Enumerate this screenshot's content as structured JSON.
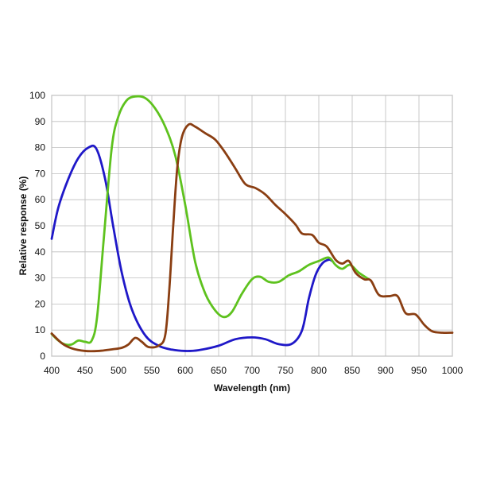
{
  "chart_data": {
    "type": "line",
    "title": "",
    "xlabel": "Wavelength (nm)",
    "ylabel": "Relative response (%)",
    "xlim": [
      400,
      1000
    ],
    "ylim": [
      0,
      100
    ],
    "x_ticks": [
      400,
      450,
      500,
      550,
      600,
      650,
      700,
      750,
      800,
      850,
      900,
      950,
      1000
    ],
    "y_ticks": [
      0,
      10,
      20,
      30,
      40,
      50,
      60,
      70,
      80,
      90,
      100
    ],
    "grid": true,
    "legend": "none",
    "series": [
      {
        "color": "#1f18c8",
        "points": [
          [
            400,
            45
          ],
          [
            410,
            57
          ],
          [
            425,
            68
          ],
          [
            440,
            76
          ],
          [
            455,
            80
          ],
          [
            467,
            79.5
          ],
          [
            480,
            68
          ],
          [
            492,
            50
          ],
          [
            505,
            32
          ],
          [
            520,
            18
          ],
          [
            540,
            8
          ],
          [
            560,
            4
          ],
          [
            580,
            2.5
          ],
          [
            600,
            2
          ],
          [
            620,
            2.3
          ],
          [
            650,
            4
          ],
          [
            675,
            6.5
          ],
          [
            700,
            7.2
          ],
          [
            720,
            6.5
          ],
          [
            740,
            4.6
          ],
          [
            760,
            4.8
          ],
          [
            775,
            10
          ],
          [
            785,
            22
          ],
          [
            795,
            31
          ],
          [
            805,
            35.5
          ],
          [
            815,
            37
          ],
          [
            820,
            36.5
          ]
        ]
      },
      {
        "color": "#5ec21e",
        "points": [
          [
            400,
            8.5
          ],
          [
            410,
            6
          ],
          [
            420,
            4.5
          ],
          [
            430,
            4.5
          ],
          [
            440,
            6
          ],
          [
            450,
            5.5
          ],
          [
            460,
            6
          ],
          [
            468,
            15
          ],
          [
            478,
            45
          ],
          [
            490,
            80
          ],
          [
            500,
            92
          ],
          [
            512,
            98
          ],
          [
            525,
            99.6
          ],
          [
            540,
            99
          ],
          [
            555,
            95
          ],
          [
            570,
            88
          ],
          [
            585,
            77
          ],
          [
            600,
            58
          ],
          [
            615,
            36
          ],
          [
            630,
            24
          ],
          [
            645,
            17.5
          ],
          [
            658,
            15
          ],
          [
            670,
            17
          ],
          [
            685,
            24
          ],
          [
            700,
            29.5
          ],
          [
            712,
            30.5
          ],
          [
            725,
            28.5
          ],
          [
            740,
            28.5
          ],
          [
            755,
            31
          ],
          [
            770,
            32.5
          ],
          [
            785,
            35
          ],
          [
            800,
            36.5
          ],
          [
            815,
            37.8
          ],
          [
            825,
            35
          ],
          [
            835,
            33.5
          ],
          [
            847,
            35
          ],
          [
            860,
            32
          ],
          [
            875,
            29.5
          ]
        ]
      },
      {
        "color": "#8a3e12",
        "points": [
          [
            400,
            8.7
          ],
          [
            415,
            5
          ],
          [
            430,
            3
          ],
          [
            450,
            2
          ],
          [
            470,
            2
          ],
          [
            490,
            2.6
          ],
          [
            505,
            3.2
          ],
          [
            515,
            4.5
          ],
          [
            525,
            7
          ],
          [
            535,
            5.5
          ],
          [
            545,
            3.5
          ],
          [
            560,
            4
          ],
          [
            570,
            8
          ],
          [
            576,
            25
          ],
          [
            582,
            50
          ],
          [
            588,
            72
          ],
          [
            595,
            84
          ],
          [
            605,
            88.8
          ],
          [
            615,
            88
          ],
          [
            630,
            85.5
          ],
          [
            645,
            83
          ],
          [
            660,
            78
          ],
          [
            675,
            72
          ],
          [
            690,
            66
          ],
          [
            705,
            64.5
          ],
          [
            720,
            62
          ],
          [
            735,
            58
          ],
          [
            750,
            54.5
          ],
          [
            765,
            50.5
          ],
          [
            775,
            47
          ],
          [
            790,
            46.5
          ],
          [
            800,
            43.5
          ],
          [
            812,
            42
          ],
          [
            825,
            37
          ],
          [
            835,
            35.5
          ],
          [
            845,
            36.5
          ],
          [
            855,
            32
          ],
          [
            868,
            29.5
          ],
          [
            878,
            29
          ],
          [
            890,
            23.5
          ],
          [
            905,
            23
          ],
          [
            918,
            23
          ],
          [
            930,
            16.5
          ],
          [
            945,
            16
          ],
          [
            958,
            12
          ],
          [
            970,
            9.5
          ],
          [
            985,
            9
          ],
          [
            1000,
            9
          ]
        ]
      }
    ]
  }
}
